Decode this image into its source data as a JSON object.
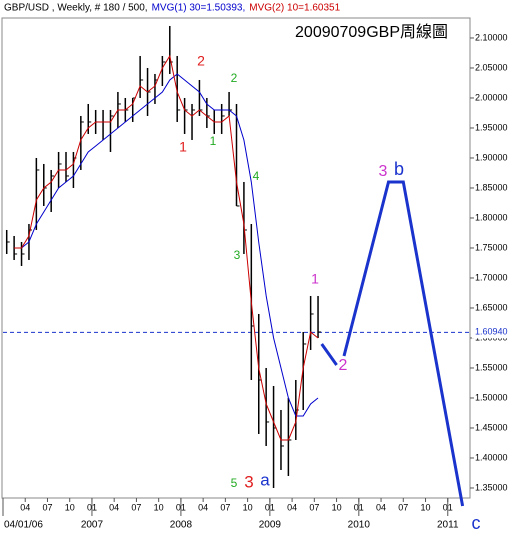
{
  "chart_data": {
    "type": "ohlc",
    "title": "20090709GBP周線圖",
    "header": [
      {
        "text": "GBP/USD , Weekly, # 180 / 500,",
        "color": "#000000"
      },
      {
        "text": "MVG(1) 30=1.50393,",
        "color": "#0000cc"
      },
      {
        "text": "MVG(2) 10=1.60351",
        "color": "#cc0000"
      }
    ],
    "x": [
      "2006-01",
      "2006-02",
      "2006-03",
      "2006-04",
      "2006-05",
      "2006-06",
      "2006-07",
      "2006-08",
      "2006-09",
      "2006-10",
      "2006-11",
      "2006-12",
      "2007-01",
      "2007-02",
      "2007-03",
      "2007-04",
      "2007-05",
      "2007-06",
      "2007-07",
      "2007-08",
      "2007-09",
      "2007-10",
      "2007-11",
      "2007-12",
      "2008-01",
      "2008-02",
      "2008-03",
      "2008-04",
      "2008-05",
      "2008-06",
      "2008-07",
      "2008-08",
      "2008-09",
      "2008-10",
      "2008-11",
      "2008-12",
      "2009-01",
      "2009-02",
      "2009-03",
      "2009-04",
      "2009-05",
      "2009-06",
      "2009-07"
    ],
    "high": [
      1.78,
      1.77,
      1.76,
      1.79,
      1.9,
      1.89,
      1.88,
      1.91,
      1.91,
      1.91,
      1.97,
      1.99,
      1.98,
      1.98,
      1.98,
      2.01,
      2.0,
      2.0,
      2.07,
      2.05,
      2.04,
      2.07,
      2.12,
      2.07,
      2.0,
      1.99,
      2.03,
      2.0,
      1.98,
      1.99,
      2.01,
      1.99,
      1.86,
      1.79,
      1.64,
      1.55,
      1.52,
      1.48,
      1.5,
      1.53,
      1.61,
      1.67,
      1.67
    ],
    "low": [
      1.74,
      1.73,
      1.72,
      1.73,
      1.78,
      1.82,
      1.81,
      1.85,
      1.86,
      1.85,
      1.88,
      1.94,
      1.94,
      1.93,
      1.91,
      1.95,
      1.96,
      1.96,
      2.0,
      1.97,
      1.99,
      2.02,
      2.04,
      1.96,
      1.94,
      1.93,
      1.97,
      1.95,
      1.94,
      1.94,
      1.97,
      1.82,
      1.74,
      1.53,
      1.44,
      1.42,
      1.35,
      1.38,
      1.37,
      1.43,
      1.48,
      1.58,
      1.6
    ],
    "close": [
      1.76,
      1.74,
      1.74,
      1.78,
      1.88,
      1.85,
      1.87,
      1.89,
      1.87,
      1.9,
      1.96,
      1.96,
      1.96,
      1.96,
      1.97,
      1.99,
      1.98,
      2.0,
      2.03,
      2.01,
      2.03,
      2.06,
      2.06,
      1.98,
      1.98,
      1.98,
      1.98,
      1.97,
      1.96,
      1.97,
      1.98,
      1.82,
      1.78,
      1.62,
      1.53,
      1.46,
      1.45,
      1.42,
      1.43,
      1.48,
      1.59,
      1.64,
      1.61
    ],
    "series": [
      {
        "name": "MVG(1) 30",
        "color": "#0000cc",
        "values": [
          null,
          null,
          1.75,
          1.76,
          1.79,
          1.81,
          1.83,
          1.85,
          1.86,
          1.87,
          1.89,
          1.91,
          1.92,
          1.93,
          1.94,
          1.95,
          1.96,
          1.97,
          1.98,
          1.99,
          2.0,
          2.01,
          2.03,
          2.04,
          2.03,
          2.02,
          2.01,
          1.99,
          1.98,
          1.98,
          1.98,
          1.97,
          1.93,
          1.86,
          1.76,
          1.67,
          1.6,
          1.55,
          1.5,
          1.47,
          1.47,
          1.49,
          1.5
        ]
      },
      {
        "name": "MVG(2) 10",
        "color": "#cc0000",
        "values": [
          null,
          1.75,
          1.75,
          1.77,
          1.83,
          1.85,
          1.86,
          1.88,
          1.88,
          1.89,
          1.93,
          1.95,
          1.96,
          1.96,
          1.96,
          1.98,
          1.98,
          1.99,
          2.02,
          2.01,
          2.02,
          2.05,
          2.07,
          2.01,
          1.98,
          1.97,
          1.98,
          1.97,
          1.96,
          1.96,
          1.97,
          1.86,
          1.79,
          1.66,
          1.55,
          1.49,
          1.46,
          1.43,
          1.43,
          1.46,
          1.55,
          1.61,
          1.6
        ]
      }
    ],
    "projection": {
      "color": "#1a33cc",
      "x": [
        "2009-08",
        "2009-10",
        null,
        "2009-11",
        "2010-05",
        "2010-07",
        "2011-03"
      ],
      "values": [
        1.59,
        1.555,
        null,
        1.57,
        1.86,
        1.86,
        1.32
      ]
    },
    "current_price": {
      "value": 1.6094,
      "label": "1.60940"
    },
    "annotations": [
      {
        "text": "1",
        "color": "#e02020"
      },
      {
        "text": "2",
        "color": "#e02020"
      },
      {
        "text": "1",
        "color": "#22aa22"
      },
      {
        "text": "2",
        "color": "#22aa22"
      },
      {
        "text": "4",
        "color": "#22aa22"
      },
      {
        "text": "3",
        "color": "#22aa22"
      },
      {
        "text": "1",
        "color": "#cc33cc"
      },
      {
        "text": "2",
        "color": "#cc33cc"
      },
      {
        "text": "5",
        "color": "#22aa22"
      },
      {
        "text": "3",
        "color": "#e02020"
      },
      {
        "text": "a",
        "color": "#1a33cc"
      },
      {
        "text": "3",
        "color": "#cc33cc"
      },
      {
        "text": "b",
        "color": "#1a33cc"
      },
      {
        "text": "c",
        "color": "#1a33cc"
      }
    ],
    "ylim": [
      1.3333,
      2.1333
    ],
    "yticks": [
      {
        "value": 2.1,
        "label": "2.10000"
      },
      {
        "value": 2.05,
        "label": "2.05000"
      },
      {
        "value": 2.0,
        "label": "2.00000"
      },
      {
        "value": 1.95,
        "label": "1.95000"
      },
      {
        "value": 1.9,
        "label": "1.90000"
      },
      {
        "value": 1.85,
        "label": "1.85000"
      },
      {
        "value": 1.8,
        "label": "1.80000"
      },
      {
        "value": 1.75,
        "label": "1.75000"
      },
      {
        "value": 1.7,
        "label": "1.70000"
      },
      {
        "value": 1.65,
        "label": "1.65000"
      },
      {
        "value": 1.6,
        "label": "1.60000"
      },
      {
        "value": 1.55,
        "label": "1.55000"
      },
      {
        "value": 1.5,
        "label": "1.50000"
      },
      {
        "value": 1.45,
        "label": "1.45000"
      },
      {
        "value": 1.4,
        "label": "1.40000"
      },
      {
        "value": 1.35,
        "label": "1.35000"
      }
    ],
    "xlim": [
      "2006-01",
      "2011-04"
    ],
    "xticks": [
      {
        "value": "2006-04",
        "label": "04"
      },
      {
        "value": "2006-07",
        "label": "07"
      },
      {
        "value": "2006-10",
        "label": "10"
      },
      {
        "value": "2007-01",
        "label": "01"
      },
      {
        "value": "2007-04",
        "label": "04"
      },
      {
        "value": "2007-07",
        "label": "07"
      },
      {
        "value": "2007-10",
        "label": "10"
      },
      {
        "value": "2008-01",
        "label": "01"
      },
      {
        "value": "2008-04",
        "label": "04"
      },
      {
        "value": "2008-07",
        "label": "07"
      },
      {
        "value": "2008-10",
        "label": "10"
      },
      {
        "value": "2009-01",
        "label": "01"
      },
      {
        "value": "2009-04",
        "label": "04"
      },
      {
        "value": "2009-07",
        "label": "07"
      },
      {
        "value": "2009-10",
        "label": "10"
      },
      {
        "value": "2010-01",
        "label": "01"
      },
      {
        "value": "2010-04",
        "label": "04"
      },
      {
        "value": "2010-07",
        "label": "07"
      },
      {
        "value": "2010-10",
        "label": "10"
      },
      {
        "value": "2011-01",
        "label": "01"
      }
    ],
    "xticks_major": [
      {
        "value": "2006-01",
        "label": "04/01/06"
      },
      {
        "value": "2007-01",
        "label": "2007"
      },
      {
        "value": "2008-01",
        "label": "2008"
      },
      {
        "value": "2009-01",
        "label": "2009"
      },
      {
        "value": "2010-01",
        "label": "2010"
      },
      {
        "value": "2011-01",
        "label": "2011"
      }
    ]
  }
}
